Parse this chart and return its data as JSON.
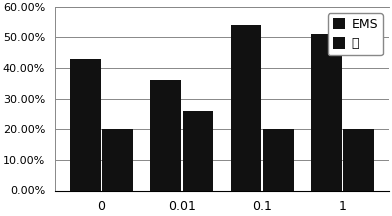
{
  "categories": [
    "0",
    "0.01",
    "0.1",
    "1"
  ],
  "ems_values": [
    0.43,
    0.36,
    0.54,
    0.51
  ],
  "miao_values": [
    0.2,
    0.26,
    0.2,
    0.2
  ],
  "ems_color": "#111111",
  "miao_color": "#111111",
  "ylim": [
    0,
    0.6
  ],
  "yticks": [
    0.0,
    0.1,
    0.2,
    0.3,
    0.4,
    0.5,
    0.6
  ],
  "legend_labels": [
    "EMS",
    "苗"
  ],
  "bar_width": 0.38,
  "bar_gap": 0.02,
  "background_color": "#ffffff",
  "grid_color": "#888888",
  "font_size_y": 8,
  "font_size_x": 9,
  "font_size_legend": 9
}
